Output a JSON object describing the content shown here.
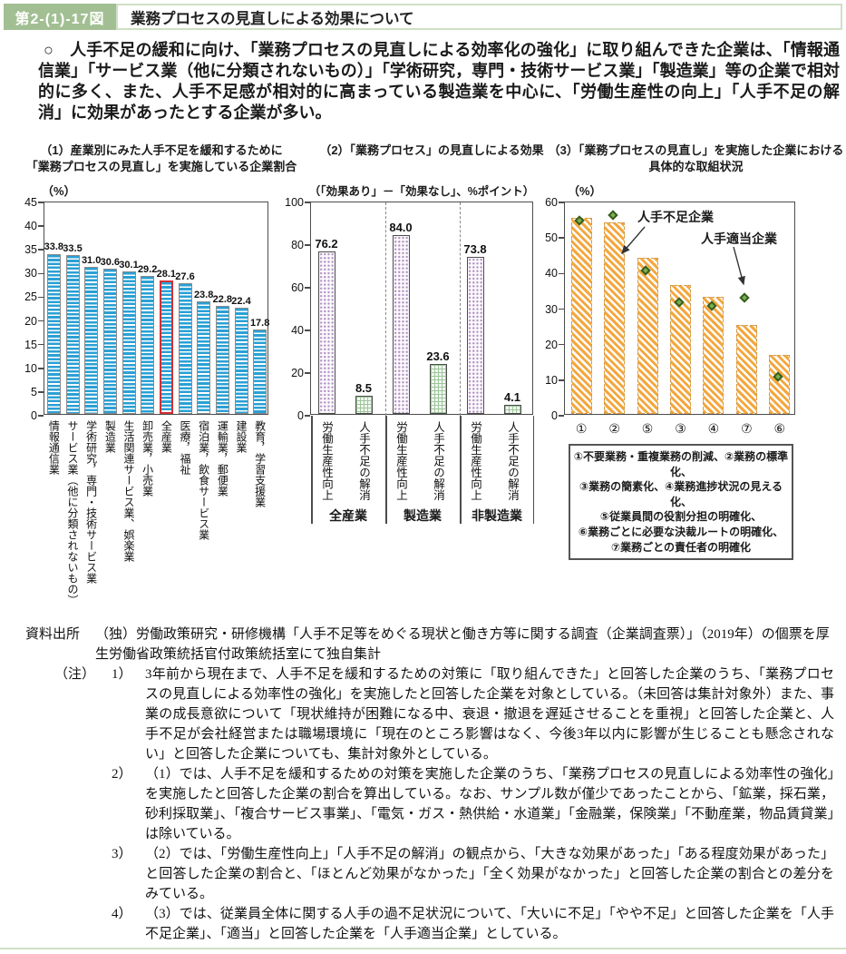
{
  "header": {
    "figure_label": "第2-(1)-17図",
    "title": "業務プロセスの見直しによる効果について"
  },
  "summary": {
    "text_with_bullet": "○　人手不足の緩和に向け、「業務プロセスの見直しによる効率化の強化」に取り組んできた企業は、「情報通信業」「サービス業（他に分類されないもの）」「学術研究，専門・技術サービス業」「製造業」等の企業で相対的に多く、また、人手不足感が相対的に高まっている製造業を中心に、「労働生産性の向上」「人手不足の解消」に効果があったとする企業が多い。"
  },
  "colors": {
    "header_green": "#a2bf93",
    "border_green": "#cfe0c4",
    "bar_blue": "#2aa0d4",
    "highlight_red": "#d22f35",
    "bar_purple": "#b394c4",
    "bar_green": "#9ec69b",
    "bar_orange": "#f4a73e",
    "diamond_green": "#7fae54"
  },
  "chart_data": [
    {
      "type": "bar",
      "title_lines": [
        "（1）産業別にみた人手不足を緩和するために",
        "「業務プロセスの見直し」を実施している企業割合"
      ],
      "unit": "（%）",
      "ylim": [
        0,
        45
      ],
      "ytick_step": 5,
      "categories": [
        "情報通信業",
        "サービス業（他に分類されないもの）",
        "学術研究，専門・技術サービス業",
        "製造業",
        "生活関連サービス業、娯楽業",
        "卸売業，小売業",
        "全産業",
        "医療，福祉",
        "宿泊業，飲食サービス業",
        "運輸業，郵便業",
        "建設業",
        "教育，学習支援業"
      ],
      "values": [
        33.8,
        33.5,
        31.0,
        30.6,
        30.1,
        29.2,
        28.1,
        27.6,
        23.8,
        22.8,
        22.4,
        17.8
      ],
      "highlight_category": "全産業"
    },
    {
      "type": "bar",
      "title_lines": [
        "（2）「業務プロセス」の見直しによる効果"
      ],
      "unit": "（「効果あり」－「効果なし」、%ポイント）",
      "ylim": [
        0,
        100
      ],
      "ytick_step": 20,
      "groups": [
        "全産業",
        "製造業",
        "非製造業"
      ],
      "bar_labels": [
        "労働生産性向上",
        "人手不足の解消"
      ],
      "values": [
        [
          76.2,
          8.5
        ],
        [
          84.0,
          23.6
        ],
        [
          73.8,
          4.1
        ]
      ]
    },
    {
      "type": "bar",
      "title_lines": [
        "（3）「業務プロセスの見直し」を実施した企業における",
        "具体的な取組状況"
      ],
      "unit": "（%）",
      "ylim": [
        0,
        60
      ],
      "ytick_step": 10,
      "categories": [
        "①",
        "②",
        "⑤",
        "③",
        "④",
        "⑦",
        "⑥"
      ],
      "series": [
        {
          "name": "人手不足企業",
          "type": "bar",
          "values": [
            55.2,
            54.0,
            44.0,
            36.2,
            33.0,
            25.0,
            16.5
          ]
        },
        {
          "name": "人手適当企業",
          "type": "diamond",
          "values": [
            54.3,
            56.0,
            40.3,
            31.3,
            30.5,
            32.8,
            10.5
          ]
        }
      ],
      "annotations": [
        {
          "text": "人手不足企業"
        },
        {
          "text": "人手適当企業"
        }
      ],
      "note_box": [
        "①不要業務・重複業務の削減、②業務の標準化、",
        "③業務の簡素化、④業務進捗状況の見える化、",
        "⑤従業員間の役割分担の明確化、",
        "⑥業務ごとに必要な決裁ルートの明確化、",
        "⑦業務ごとの責任者の明確化"
      ]
    }
  ],
  "notes": {
    "source_label": "資料出所",
    "source_text": "（独）労働政策研究・研修機構「人手不足等をめぐる現状と働き方等に関する調査（企業調査票）」（2019年）の個票を厚生労働省政策統括官付政策統括室にて独自集計",
    "note_label": "（注）",
    "items": [
      {
        "num": "1）",
        "text": "3年前から現在まで、人手不足を緩和するための対策に「取り組んできた」と回答した企業のうち、「業務プロセスの見直しによる効率性の強化」を実施したと回答した企業を対象としている。（未回答は集計対象外）また、事業の成長意欲について「現状維持が困難になる中、衰退・撤退を遅延させることを重視」と回答した企業と、人手不足が会社経営または職場環境に「現在のところ影響はなく、今後3年以内に影響が生じることも懸念されない」と回答した企業についても、集計対象外としている。"
      },
      {
        "num": "2）",
        "text": "（1）では、人手不足を緩和するための対策を実施した企業のうち、「業務プロセスの見直しによる効率性の強化」を実施したと回答した企業の割合を算出している。なお、サンプル数が僅少であったことから、「鉱業，採石業，砂利採取業」、「複合サービス事業」、「電気・ガス・熱供給・水道業」「金融業，保険業」「不動産業，物品賃貸業」は除いている。"
      },
      {
        "num": "3）",
        "text": "（2）では、「労働生産性向上」「人手不足の解消」の観点から、「大きな効果があった」「ある程度効果があった」と回答した企業の割合と、「ほとんど効果がなかった」「全く効果がなかった」と回答した企業の割合との差分をみている。"
      },
      {
        "num": "4）",
        "text": "（3）では、従業員全体に関する人手の過不足状況について、「大いに不足」「やや不足」と回答した企業を「人手不足企業」、「適当」と回答した企業を「人手適当企業」としている。"
      }
    ]
  }
}
